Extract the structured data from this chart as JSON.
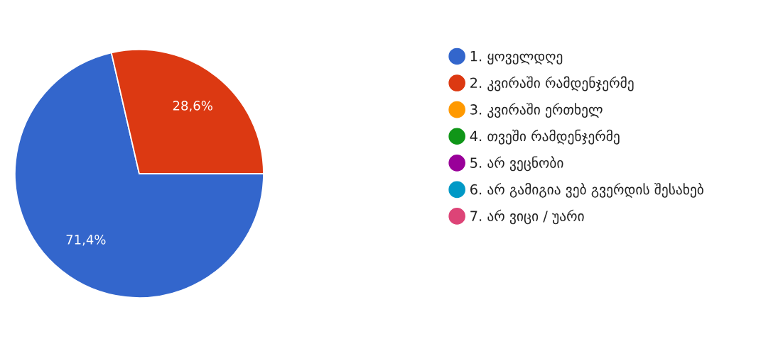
{
  "chart_data": {
    "type": "pie",
    "categories": [
      "1. ყოველდღე",
      "2. კვირაში რამდენჯერმე",
      "3. კვირაში ერთხელ",
      "4. თვეში რამდენჯერმე",
      "5. არ ვეცნობი",
      "6. არ გამიგია ვებ გვერდის შესახებ",
      "7. არ ვიცი / უარი"
    ],
    "values": [
      71.4,
      28.6,
      0,
      0,
      0,
      0,
      0
    ],
    "colors": [
      "#3366cc",
      "#dc3912",
      "#ff9900",
      "#109618",
      "#990099",
      "#0099c6",
      "#dd4477"
    ],
    "value_labels": [
      "71,4%",
      "28,6%",
      null,
      null,
      null,
      null,
      null
    ],
    "legend": "right"
  }
}
